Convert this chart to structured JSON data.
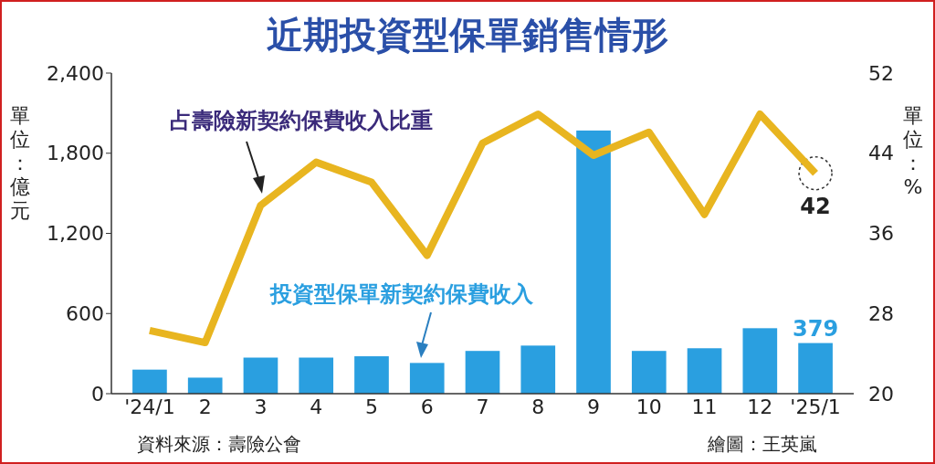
{
  "chart_data": {
    "type": "bar",
    "title": "近期投資型保單銷售情形",
    "ylabel": "單位：億元",
    "y2label": "單位：%",
    "categories": [
      "'24/1",
      "2",
      "3",
      "4",
      "5",
      "6",
      "7",
      "8",
      "9",
      "10",
      "11",
      "12",
      "'25/1"
    ],
    "series": [
      {
        "name": "投資型保單新契約保費收入",
        "color": "#2a9fe0",
        "values": [
          180,
          120,
          270,
          270,
          280,
          230,
          320,
          360,
          1970,
          320,
          340,
          490,
          379
        ],
        "value_labels": [
          null,
          null,
          null,
          null,
          null,
          null,
          null,
          null,
          null,
          null,
          null,
          null,
          "379"
        ]
      },
      {
        "name": "占壽險新契約保費收入比重",
        "type": "line",
        "axis": "y2",
        "color": "#e8b520",
        "values": [
          26.3,
          25.1,
          38.8,
          43.1,
          41.1,
          33.8,
          45,
          47.9,
          43.8,
          46.1,
          37.9,
          47.9,
          42
        ],
        "value_labels": [
          null,
          null,
          null,
          null,
          null,
          null,
          null,
          null,
          null,
          null,
          null,
          null,
          "42"
        ]
      }
    ],
    "ylim": [
      0,
      2400
    ],
    "yticks": [
      0,
      {
        "value": 600,
        "label": "600"
      },
      {
        "value": 1200,
        "label": "1,200"
      },
      {
        "value": 1800,
        "label": "1,800"
      },
      {
        "value": 2400,
        "label": "2,400"
      }
    ],
    "y2lim": [
      20,
      52
    ],
    "y2ticks": [
      20,
      28,
      36,
      44,
      52
    ],
    "grid": false,
    "legend": false,
    "annotations": [
      "資料來源：壽險公會",
      "繪圖：王英嵐"
    ]
  }
}
